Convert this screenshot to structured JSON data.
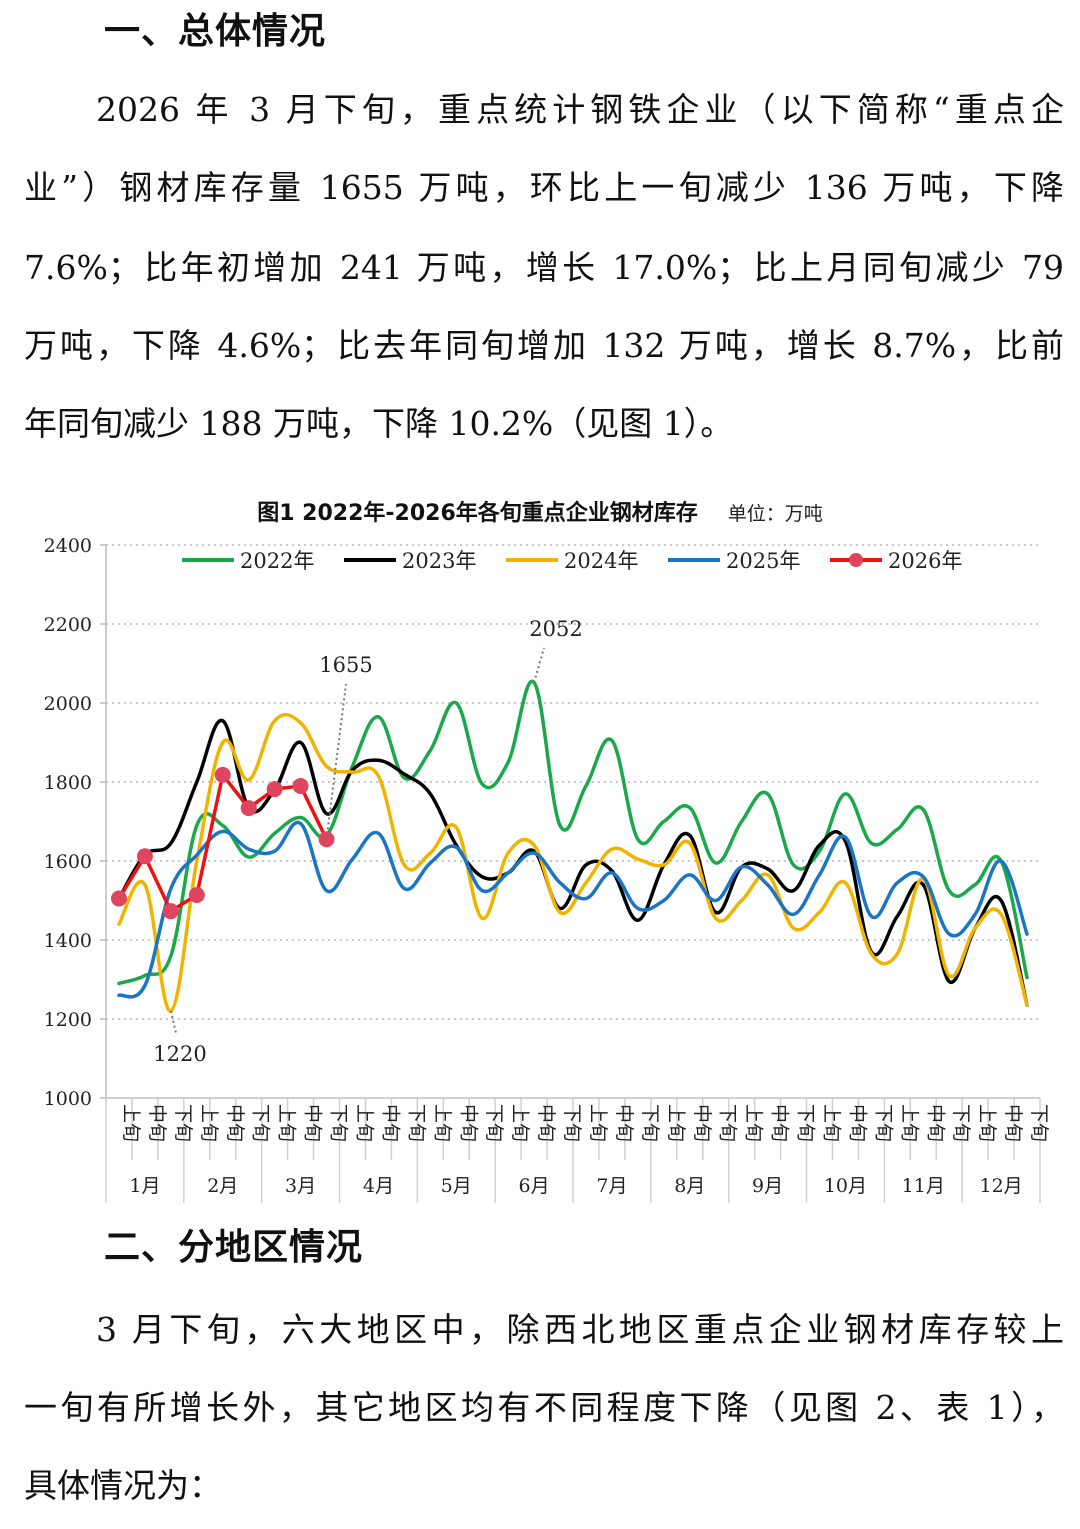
{
  "section1": {
    "heading": "一、总体情况",
    "lines": [
      "2026 年 3 月下旬，重点统计钢铁企业（以下简称“重点企",
      "业”）钢材库存量 1655 万吨，环比上一旬减少 136 万吨，下降",
      "7.6%；比年初增加 241 万吨，增长 17.0%；比上月同旬减少 79",
      "万吨，下降 4.6%；比去年同旬增加 132 万吨，增长 8.7%，比前",
      "年同旬减少 188 万吨，下降 10.2%（见图 1）。"
    ]
  },
  "section2": {
    "heading": "二、分地区情况",
    "lines": [
      "3 月下旬，六大地区中，除西北地区重点企业钢材库存较上",
      "一旬有所增长外，其它地区均有不同程度下降（见图 2、表 1），",
      "具体情况为："
    ]
  },
  "chart_data": {
    "type": "line",
    "title": "图1  2022年-2026年各旬重点企业钢材库存",
    "unit": "单位：万吨",
    "xlabel": "",
    "ylabel": "",
    "ylim": [
      1000,
      2400
    ],
    "yticks": [
      1000,
      1200,
      1400,
      1600,
      1800,
      2000,
      2200,
      2400
    ],
    "grid": "horizontal-dotted",
    "legend_position": "top",
    "months": [
      "1月",
      "2月",
      "3月",
      "4月",
      "5月",
      "6月",
      "7月",
      "8月",
      "9月",
      "10月",
      "11月",
      "12月"
    ],
    "periods": [
      "上旬",
      "中旬",
      "下旬"
    ],
    "annotations": [
      {
        "text": "1655",
        "series": "2026年",
        "index": 8
      },
      {
        "text": "2052",
        "series": "2022年",
        "index": 16
      },
      {
        "text": "1220",
        "series": "2024年",
        "index": 2
      }
    ],
    "series": [
      {
        "name": "2022年",
        "color": "#1aa84a",
        "smooth": true,
        "values": [
          1290,
          1310,
          1360,
          1690,
          1690,
          1610,
          1670,
          1710,
          1665,
          1840,
          1965,
          1810,
          1880,
          2000,
          1795,
          1850,
          2052,
          1690,
          1790,
          1905,
          1655,
          1700,
          1735,
          1595,
          1700,
          1770,
          1590,
          1625,
          1770,
          1645,
          1680,
          1730,
          1525,
          1540,
          1600,
          1305
        ]
      },
      {
        "name": "2023年",
        "color": "#000000",
        "smooth": true,
        "values": [
          1505,
          1615,
          1645,
          1800,
          1955,
          1735,
          1780,
          1900,
          1720,
          1830,
          1855,
          1820,
          1770,
          1640,
          1560,
          1570,
          1625,
          1480,
          1590,
          1575,
          1450,
          1590,
          1665,
          1470,
          1585,
          1580,
          1525,
          1640,
          1650,
          1370,
          1460,
          1540,
          1295,
          1430,
          1500,
          1235
        ]
      },
      {
        "name": "2024年",
        "color": "#f0b400",
        "smooth": true,
        "values": [
          1440,
          1540,
          1220,
          1600,
          1900,
          1805,
          1955,
          1950,
          1840,
          1825,
          1815,
          1590,
          1620,
          1685,
          1455,
          1620,
          1640,
          1470,
          1545,
          1630,
          1605,
          1590,
          1645,
          1455,
          1500,
          1565,
          1430,
          1470,
          1545,
          1365,
          1365,
          1555,
          1310,
          1430,
          1465,
          1235
        ]
      },
      {
        "name": "2025年",
        "color": "#1b75c4",
        "smooth": true,
        "values": [
          1260,
          1285,
          1530,
          1615,
          1675,
          1630,
          1625,
          1695,
          1525,
          1605,
          1670,
          1530,
          1595,
          1635,
          1525,
          1570,
          1620,
          1545,
          1505,
          1570,
          1480,
          1500,
          1565,
          1500,
          1585,
          1540,
          1465,
          1565,
          1660,
          1460,
          1545,
          1560,
          1415,
          1465,
          1600,
          1415
        ]
      },
      {
        "name": "2026年",
        "color": "#ee1111",
        "marker_color": "#e0455f",
        "smooth": false,
        "markers": true,
        "values": [
          1505,
          1612,
          1473,
          1514,
          1818,
          1734,
          1782,
          1790,
          1655
        ]
      }
    ]
  }
}
